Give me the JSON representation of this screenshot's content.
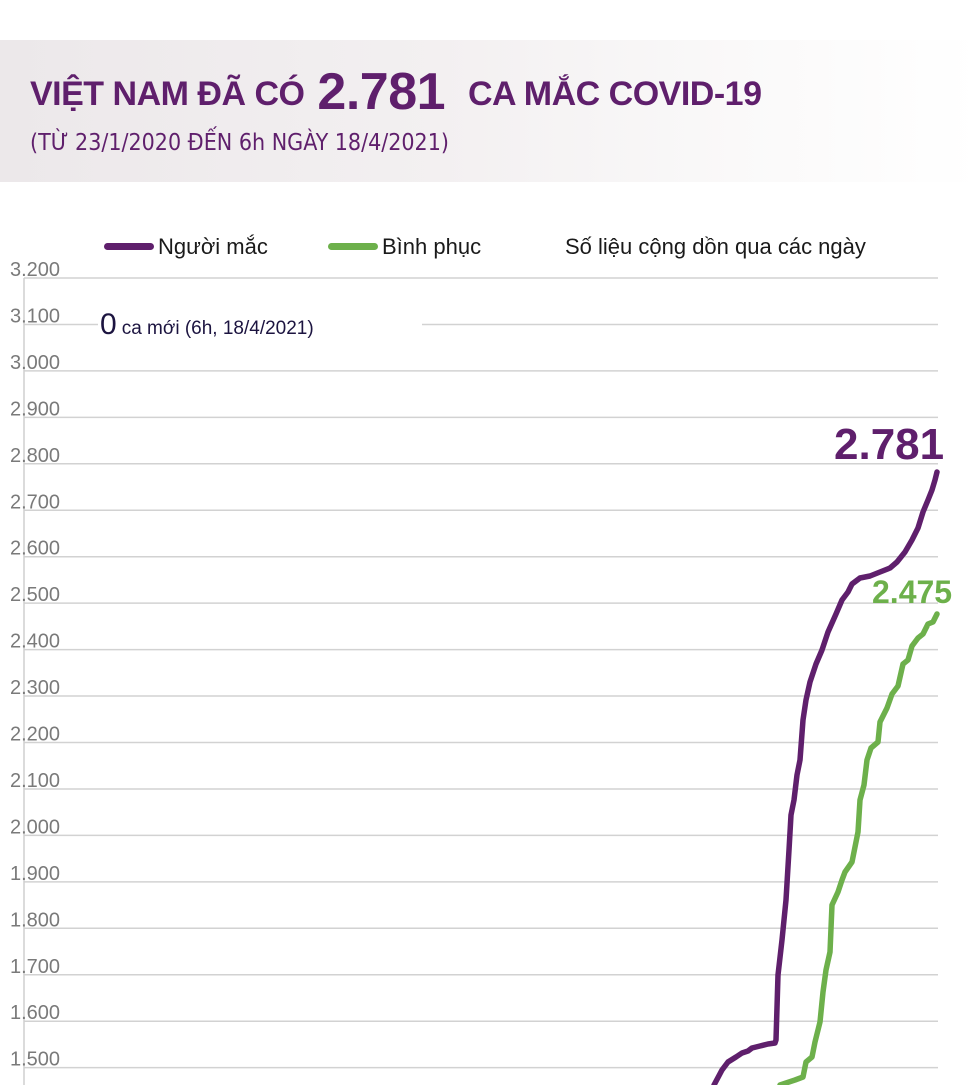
{
  "header": {
    "title_prefix": "VIỆT NAM ĐÃ CÓ",
    "title_number": "2.781",
    "title_suffix": "CA MẮC COVID-19",
    "subtitle": "(TỪ 23/1/2020 ĐẾN 6h NGÀY 18/4/2021)"
  },
  "legend": {
    "items": [
      {
        "label": "Người mắc",
        "color": "#5f1f6c"
      },
      {
        "label": "Bình phục",
        "color": "#6db04b"
      }
    ],
    "note": "Số liệu cộng dồn qua các ngày"
  },
  "annotation": {
    "new_cases_number": "0",
    "new_cases_text": "ca mới (6h, 18/4/2021)"
  },
  "end_labels": {
    "cases": "2.781",
    "recovered": "2.475"
  },
  "y_ticks": [
    "3.200",
    "3.100",
    "3.000",
    "2.900",
    "2.800",
    "2.700",
    "2.600",
    "2.500",
    "2.400",
    "2.300",
    "2.200",
    "2.100",
    "2.000",
    "1.900",
    "1.800",
    "1.700",
    "1.600",
    "1.500"
  ],
  "chart_data": {
    "type": "line",
    "title": "VIỆT NAM ĐÃ CÓ 2.781 CA MẮC COVID-19",
    "subtitle": "(TỪ 23/1/2020 ĐẾN 6h NGÀY 18/4/2021)",
    "xlabel": "",
    "ylabel": "",
    "note": "Số liệu cộng dồn qua các ngày",
    "ylim": [
      1500,
      3200
    ],
    "y_ticks": [
      3200,
      3100,
      3000,
      2900,
      2800,
      2700,
      2600,
      2500,
      2400,
      2300,
      2200,
      2100,
      2000,
      1900,
      1800,
      1700,
      1600,
      1500
    ],
    "grid": true,
    "legend_position": "top",
    "x_range": "23/1/2020 – 18/4/2021 (cumulative daily)",
    "series": [
      {
        "name": "Người mắc",
        "color": "#5f1f6c",
        "final_value": 2781,
        "approx_visible_values": [
          1460,
          1500,
          1520,
          1530,
          1540,
          1550,
          1560,
          1770,
          1960,
          2070,
          2160,
          2290,
          2340,
          2400,
          2480,
          2540,
          2560,
          2570,
          2590,
          2610,
          2660,
          2700,
          2740,
          2781
        ]
      },
      {
        "name": "Bình phục",
        "color": "#6db04b",
        "final_value": 2475,
        "approx_visible_values": [
          1460,
          1470,
          1475,
          1510,
          1530,
          1560,
          1600,
          1665,
          1710,
          1750,
          1855,
          1880,
          1900,
          1920,
          1945,
          1985,
          2010,
          2070,
          2110,
          2150,
          2190,
          2200,
          2240,
          2270,
          2305,
          2330,
          2370,
          2400,
          2420,
          2430,
          2450,
          2475
        ]
      }
    ],
    "annotations": [
      "0 ca mới (6h, 18/4/2021)"
    ]
  }
}
